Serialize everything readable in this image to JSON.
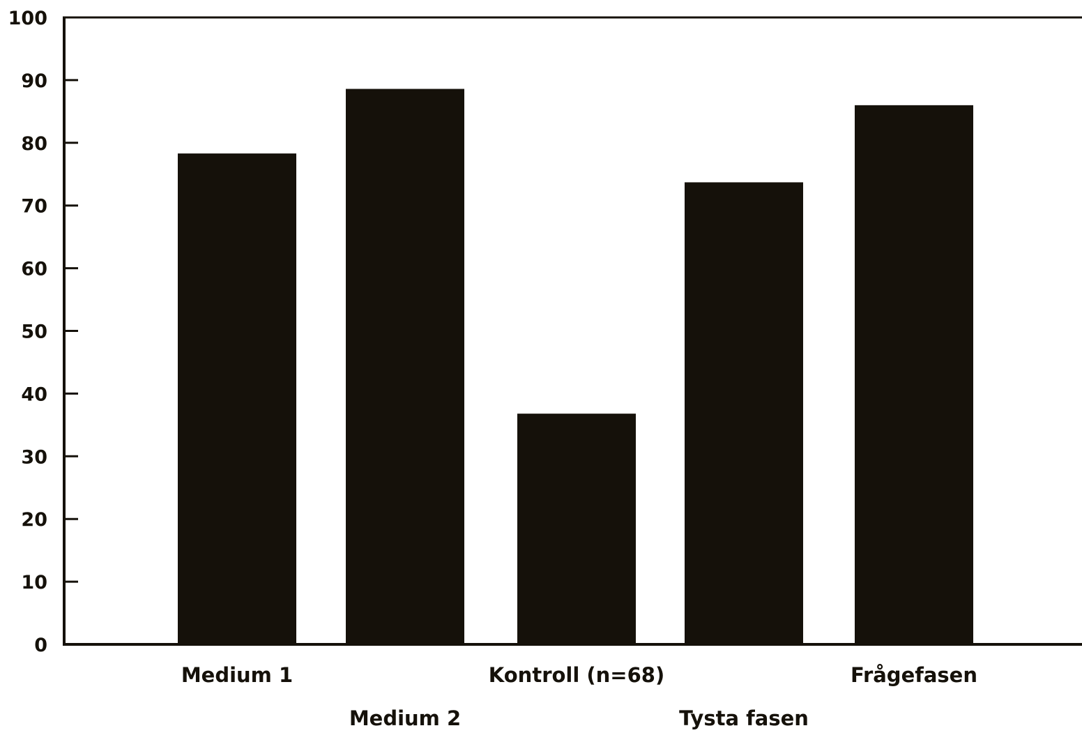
{
  "chart_data": {
    "type": "bar",
    "categories": [
      "Medium 1",
      "Medium 2",
      "Kontroll (n=68)",
      "Tysta fasen",
      "Frågefasen"
    ],
    "values": [
      78.3,
      88.6,
      36.8,
      73.7,
      86.0
    ],
    "ylim": [
      0,
      100
    ],
    "yticks": [
      0,
      10,
      20,
      30,
      40,
      50,
      60,
      70,
      80,
      90,
      100
    ],
    "title": "",
    "xlabel": "",
    "ylabel": "",
    "bar_color": "#15110a",
    "axis_color": "#15110a",
    "grid": false,
    "legend": "none"
  }
}
